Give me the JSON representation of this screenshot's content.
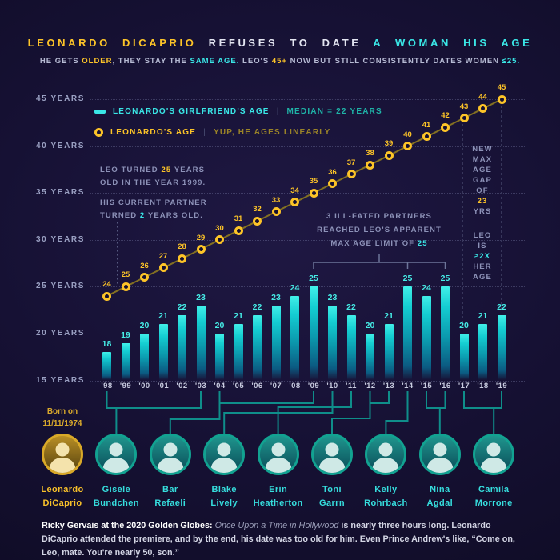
{
  "header": {
    "title_parts": [
      {
        "t": "LEONARDO DICAPRIO ",
        "c": "yellow"
      },
      {
        "t": "REFUSES TO DATE ",
        "c": "white"
      },
      {
        "t": "A WOMAN HIS AGE",
        "c": "cyan"
      }
    ],
    "subtitle_parts": [
      {
        "t": "HE GETS "
      },
      {
        "t": "OLDER",
        "c": "yellow"
      },
      {
        "t": ", THEY STAY THE "
      },
      {
        "t": "SAME AGE.",
        "c": "cyan"
      },
      {
        "t": " LEO'S "
      },
      {
        "t": "45+",
        "c": "yellow"
      },
      {
        "t": " NOW BUT STILL CONSISTENTLY DATES WOMEN "
      },
      {
        "t": "≤25.",
        "c": "cyan"
      }
    ]
  },
  "legend": {
    "girlfriend_label": "LEONARDO'S GIRLFRIEND'S AGE",
    "girlfriend_note": "MEDIAN = 22 YEARS",
    "leo_label": "LEONARDO'S AGE",
    "leo_note": "YUP, HE AGES LINEARLY",
    "separator": "|"
  },
  "chart_data": {
    "type": "bar",
    "categories": [
      "'98",
      "'99",
      "'00",
      "'01",
      "'02",
      "'03",
      "'04",
      "'05",
      "'06",
      "'07",
      "'08",
      "'09",
      "'10",
      "'11",
      "'12",
      "'13",
      "'14",
      "'15",
      "'16",
      "'17",
      "'18",
      "'19"
    ],
    "series": [
      {
        "name": "LEONARDO'S GIRLFRIEND'S AGE",
        "type": "bar",
        "color": "#2fe2de",
        "values": [
          18,
          19,
          20,
          21,
          22,
          23,
          20,
          21,
          22,
          23,
          24,
          25,
          23,
          22,
          20,
          21,
          25,
          24,
          25,
          20,
          21,
          22
        ]
      },
      {
        "name": "LEONARDO'S AGE",
        "type": "line",
        "color": "#fdc428",
        "values": [
          24,
          25,
          26,
          27,
          28,
          29,
          30,
          31,
          32,
          33,
          34,
          35,
          36,
          37,
          38,
          39,
          40,
          41,
          42,
          43,
          44,
          45
        ]
      }
    ],
    "yticks": [
      15,
      20,
      25,
      30,
      35,
      40,
      45
    ],
    "ytick_suffix": " YEARS",
    "ylim": [
      15,
      47
    ],
    "grid": "horizontal-dotted",
    "legend_position": "top-left-inside",
    "median_girlfriend_age": 22
  },
  "annotations": {
    "leo_turned": {
      "lines": [
        [
          {
            "t": "LEO TURNED "
          },
          {
            "t": "25",
            "c": "yellow"
          },
          {
            "t": " YEARS"
          }
        ],
        [
          {
            "t": "OLD IN THE YEAR 1999."
          }
        ],
        [
          {
            "t": "HIS CURRENT PARTNER"
          }
        ],
        [
          {
            "t": "TURNED "
          },
          {
            "t": "2",
            "c": "cyan"
          },
          {
            "t": " YEARS OLD."
          }
        ]
      ]
    },
    "max_age": {
      "lines": [
        [
          {
            "t": "3 ILL-FATED PARTNERS"
          }
        ],
        [
          {
            "t": "REACHED LEO'S APPARENT"
          }
        ],
        [
          {
            "t": "MAX AGE LIMIT OF "
          },
          {
            "t": "25",
            "c": "cyan"
          }
        ]
      ]
    },
    "age_gap": {
      "lines": [
        [
          {
            "t": "NEW"
          }
        ],
        [
          {
            "t": "MAX"
          }
        ],
        [
          {
            "t": "AGE"
          }
        ],
        [
          {
            "t": "GAP"
          }
        ],
        [
          {
            "t": "OF"
          }
        ],
        [
          {
            "t": "23",
            "c": "yellow"
          }
        ],
        [
          {
            "t": "YRS"
          }
        ]
      ]
    },
    "her_age": {
      "lines": [
        [
          {
            "t": "LEO"
          }
        ],
        [
          {
            "t": "IS"
          }
        ],
        [
          {
            "t": "≥2X",
            "c": "cyan"
          }
        ],
        [
          {
            "t": "HER"
          }
        ],
        [
          {
            "t": "AGE"
          }
        ]
      ]
    }
  },
  "leo_info": {
    "born_line1": "Born on",
    "born_line2": "11/11/1974"
  },
  "partners": [
    {
      "first": "Leonardo",
      "last": "DiCaprio",
      "is_leo": true
    },
    {
      "first": "Gisele",
      "last": "Bundchen",
      "years": [
        "'98",
        "'03"
      ]
    },
    {
      "first": "Bar",
      "last": "Refaeli",
      "years": [
        "'04",
        "'09"
      ]
    },
    {
      "first": "Blake",
      "last": "Lively",
      "years": [
        "'10"
      ]
    },
    {
      "first": "Erin",
      "last": "Heatherton",
      "years": [
        "'11"
      ]
    },
    {
      "first": "Toni",
      "last": "Garrn",
      "years": [
        "'12",
        "'13"
      ]
    },
    {
      "first": "Kelly",
      "last": "Rohrbach",
      "years": [
        "'14"
      ]
    },
    {
      "first": "Nina",
      "last": "Agdal",
      "years": [
        "'15",
        "'16"
      ]
    },
    {
      "first": "Camila",
      "last": "Morrone",
      "years": [
        "'17",
        "'19"
      ]
    }
  ],
  "footer": {
    "parts": [
      {
        "t": "Ricky Gervais at the 2020 Golden Globes:",
        "c": "lead"
      },
      {
        "t": "  "
      },
      {
        "t": "Once Upon a Time in Hollywood",
        "c": "movie"
      },
      {
        "t": " is nearly three hours long. Leonardo DiCaprio attended the premiere, and by the end, his date was too old for him.  Even Prince Andrew's like, “Come on, Leo, mate. You're nearly 50, son.”"
      }
    ]
  }
}
